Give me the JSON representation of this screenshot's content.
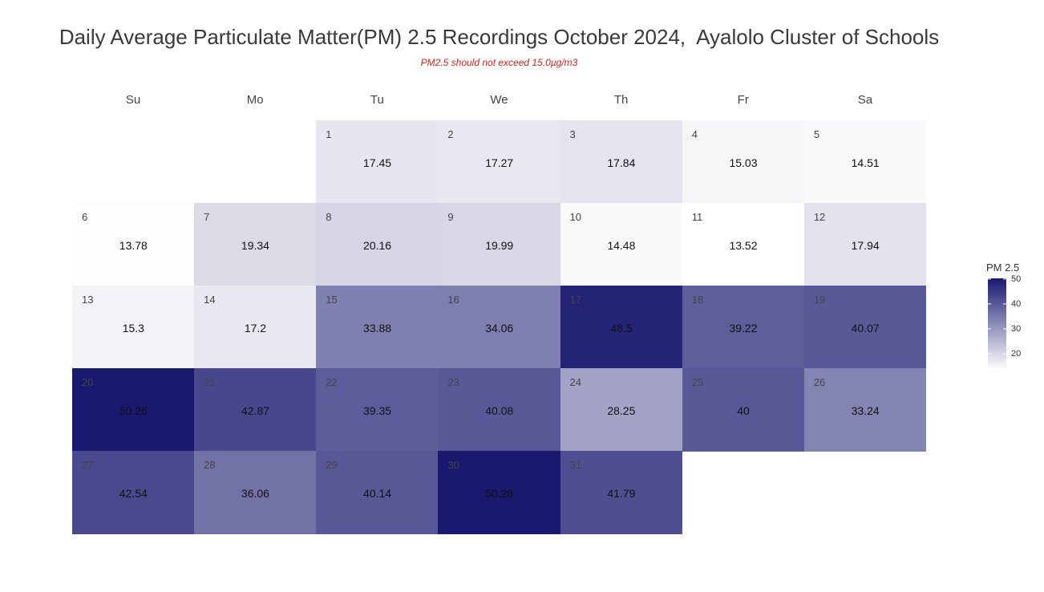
{
  "title": "Daily Average Particulate Matter(PM) 2.5 Recordings October 2024,  Ayalolo Cluster of Schools",
  "subtitle": "PM2.5 should not exceed 15.0µg/m3",
  "colors": {
    "low": "#ffffff",
    "high": "#191970",
    "subtitle": "#e0201b"
  },
  "chart_data": {
    "type": "heatmap",
    "layout": "calendar",
    "weekdays": [
      "Su",
      "Mo",
      "Tu",
      "We",
      "Th",
      "Fr",
      "Sa"
    ],
    "first_weekday_index": 2,
    "days": [
      1,
      2,
      3,
      4,
      5,
      6,
      7,
      8,
      9,
      10,
      11,
      12,
      13,
      14,
      15,
      16,
      17,
      18,
      19,
      20,
      21,
      22,
      23,
      24,
      25,
      26,
      27,
      28,
      29,
      30,
      31
    ],
    "values": [
      17.45,
      17.27,
      17.84,
      15.03,
      14.51,
      13.78,
      19.34,
      20.16,
      19.99,
      14.48,
      13.52,
      17.94,
      15.3,
      17.2,
      33.88,
      34.06,
      48.5,
      39.22,
      40.07,
      50.26,
      42.87,
      39.35,
      40.08,
      28.25,
      40,
      33.24,
      42.54,
      36.06,
      40.14,
      50.28,
      41.79
    ],
    "value_labels": [
      "17.45",
      "17.27",
      "17.84",
      "15.03",
      "14.51",
      "13.78",
      "19.34",
      "20.16",
      "19.99",
      "14.48",
      "13.52",
      "17.94",
      "15.3",
      "17.2",
      "33.88",
      "34.06",
      "48.5",
      "39.22",
      "40.07",
      "50.26",
      "42.87",
      "39.35",
      "40.08",
      "28.25",
      "40",
      "33.24",
      "42.54",
      "36.06",
      "40.14",
      "50.28",
      "41.79"
    ],
    "legend": {
      "title": "PM 2.5",
      "ticks": [
        50,
        40,
        30,
        20
      ],
      "tick_labels": [
        "50",
        "40",
        "30",
        "20"
      ],
      "range": [
        13.52,
        50.28
      ],
      "position": "right"
    }
  }
}
